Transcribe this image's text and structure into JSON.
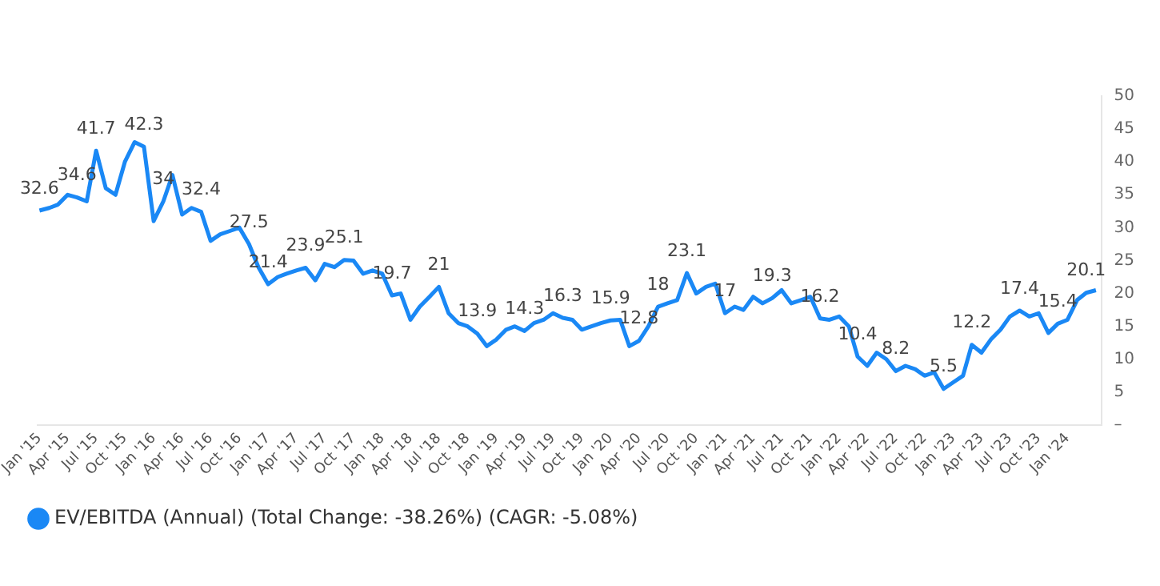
{
  "chart_data": {
    "type": "line",
    "legend": "bottom",
    "grid": false,
    "marker": "none",
    "line_style": "solid",
    "x": [
      "2015-01",
      "2015-02",
      "2015-03",
      "2015-04",
      "2015-05",
      "2015-06",
      "2015-07",
      "2015-08",
      "2015-09",
      "2015-10",
      "2015-11",
      "2015-12",
      "2016-01",
      "2016-02",
      "2016-03",
      "2016-04",
      "2016-05",
      "2016-06",
      "2016-07",
      "2016-08",
      "2016-09",
      "2016-10",
      "2016-11",
      "2016-12",
      "2017-01",
      "2017-02",
      "2017-03",
      "2017-04",
      "2017-05",
      "2017-06",
      "2017-07",
      "2017-08",
      "2017-09",
      "2017-10",
      "2017-11",
      "2017-12",
      "2018-01",
      "2018-02",
      "2018-03",
      "2018-04",
      "2018-05",
      "2018-06",
      "2018-07",
      "2018-08",
      "2018-09",
      "2018-10",
      "2018-11",
      "2018-12",
      "2019-01",
      "2019-02",
      "2019-03",
      "2019-04",
      "2019-05",
      "2019-06",
      "2019-07",
      "2019-08",
      "2019-09",
      "2019-10",
      "2019-11",
      "2019-12",
      "2020-01",
      "2020-02",
      "2020-03",
      "2020-04",
      "2020-05",
      "2020-06",
      "2020-07",
      "2020-08",
      "2020-09",
      "2020-10",
      "2020-11",
      "2020-12",
      "2021-01",
      "2021-02",
      "2021-03",
      "2021-04",
      "2021-05",
      "2021-06",
      "2021-07",
      "2021-08",
      "2021-09",
      "2021-10",
      "2021-11",
      "2021-12",
      "2022-01",
      "2022-02",
      "2022-03",
      "2022-04",
      "2022-05",
      "2022-06",
      "2022-07",
      "2022-08",
      "2022-09",
      "2022-10",
      "2022-11",
      "2022-12",
      "2023-01",
      "2023-02",
      "2023-03",
      "2023-04",
      "2023-05",
      "2023-06",
      "2023-07",
      "2023-08",
      "2023-09",
      "2023-10",
      "2023-11",
      "2023-12",
      "2024-01",
      "2024-02",
      "2024-03",
      "2024-04"
    ],
    "series": [
      {
        "name": "EV/EBITDA (Annual) (Total Change: -38.26%) (CAGR: -5.08%)",
        "color": "#1a88f5",
        "values": [
          32.6,
          33,
          33.5,
          35,
          34.6,
          34,
          41.7,
          36,
          35,
          40,
          43,
          42.3,
          31,
          34,
          38,
          32,
          33,
          32.4,
          28,
          29,
          29.5,
          30,
          27.5,
          24,
          21.4,
          22.5,
          23,
          23.5,
          23.9,
          22,
          24.5,
          24,
          25.1,
          25,
          23,
          23.5,
          23,
          19.7,
          20,
          16,
          18,
          19.5,
          21,
          17,
          15.5,
          15,
          13.9,
          12,
          13,
          14.5,
          15,
          14.3,
          15.5,
          16,
          17,
          16.3,
          16,
          14.5,
          15,
          15.5,
          15.9,
          16,
          12,
          12.8,
          15,
          18,
          18.5,
          19,
          23.1,
          20,
          21,
          21.5,
          17,
          18,
          17.5,
          19.5,
          18.5,
          19.3,
          20.5,
          18.5,
          19,
          19.5,
          16.2,
          16,
          16.5,
          15,
          10.4,
          9,
          11,
          10,
          8.2,
          9,
          8.5,
          7.5,
          8,
          5.5,
          6.5,
          7.5,
          12.2,
          11,
          13,
          14.5,
          16.5,
          17.4,
          16.5,
          17,
          14,
          15.4,
          16,
          19,
          20.1,
          20.5
        ],
        "value_labels": [
          "32.6",
          null,
          null,
          null,
          "34.6",
          null,
          "41.7",
          null,
          null,
          null,
          null,
          "42.3",
          null,
          "34",
          null,
          null,
          null,
          "32.4",
          null,
          null,
          null,
          null,
          "27.5",
          null,
          "21.4",
          null,
          null,
          null,
          "23.9",
          null,
          null,
          null,
          "25.1",
          null,
          null,
          null,
          null,
          "19.7",
          null,
          null,
          null,
          null,
          "21",
          null,
          null,
          null,
          "13.9",
          null,
          null,
          null,
          null,
          "14.3",
          null,
          null,
          null,
          "16.3",
          null,
          null,
          null,
          null,
          "15.9",
          null,
          null,
          "12.8",
          null,
          "18",
          null,
          null,
          "23.1",
          null,
          null,
          null,
          "17",
          null,
          null,
          null,
          null,
          "19.3",
          null,
          null,
          null,
          null,
          "16.2",
          null,
          null,
          null,
          "10.4",
          null,
          null,
          null,
          "8.2",
          null,
          null,
          null,
          null,
          "5.5",
          null,
          null,
          "12.2",
          null,
          null,
          null,
          null,
          "17.4",
          null,
          null,
          null,
          "15.4",
          null,
          null,
          "20.1",
          null
        ]
      }
    ],
    "xlim": [
      "2014-12-25",
      "2024-04-18"
    ],
    "xticks": [
      {
        "value": "2015-01",
        "label": "Jan '15"
      },
      {
        "value": "2015-04",
        "label": "Apr '15"
      },
      {
        "value": "2015-07",
        "label": "Jul '15"
      },
      {
        "value": "2015-10",
        "label": "Oct '15"
      },
      {
        "value": "2016-01",
        "label": "Jan '16"
      },
      {
        "value": "2016-04",
        "label": "Apr '16"
      },
      {
        "value": "2016-07",
        "label": "Jul '16"
      },
      {
        "value": "2016-10",
        "label": "Oct '16"
      },
      {
        "value": "2017-01",
        "label": "Jan '17"
      },
      {
        "value": "2017-04",
        "label": "Apr '17"
      },
      {
        "value": "2017-07",
        "label": "Jul '17"
      },
      {
        "value": "2017-10",
        "label": "Oct '17"
      },
      {
        "value": "2018-01",
        "label": "Jan '18"
      },
      {
        "value": "2018-04",
        "label": "Apr '18"
      },
      {
        "value": "2018-07",
        "label": "Jul '18"
      },
      {
        "value": "2018-10",
        "label": "Oct '18"
      },
      {
        "value": "2019-01",
        "label": "Jan '19"
      },
      {
        "value": "2019-04",
        "label": "Apr '19"
      },
      {
        "value": "2019-07",
        "label": "Jul '19"
      },
      {
        "value": "2019-10",
        "label": "Oct '19"
      },
      {
        "value": "2020-01",
        "label": "Jan '20"
      },
      {
        "value": "2020-04",
        "label": "Apr '20"
      },
      {
        "value": "2020-07",
        "label": "Jul '20"
      },
      {
        "value": "2020-10",
        "label": "Oct '20"
      },
      {
        "value": "2021-01",
        "label": "Jan '21"
      },
      {
        "value": "2021-04",
        "label": "Apr '21"
      },
      {
        "value": "2021-07",
        "label": "Jul '21"
      },
      {
        "value": "2021-10",
        "label": "Oct '21"
      },
      {
        "value": "2022-01",
        "label": "Jan '22"
      },
      {
        "value": "2022-04",
        "label": "Apr '22"
      },
      {
        "value": "2022-07",
        "label": "Jul '22"
      },
      {
        "value": "2022-10",
        "label": "Oct '22"
      },
      {
        "value": "2023-01",
        "label": "Jan '23"
      },
      {
        "value": "2023-04",
        "label": "Apr '23"
      },
      {
        "value": "2023-07",
        "label": "Jul '23"
      },
      {
        "value": "2023-10",
        "label": "Oct '23"
      },
      {
        "value": "2024-01",
        "label": "Jan '24"
      }
    ],
    "ylim": [
      0,
      50
    ],
    "yticks": [
      {
        "value": 0,
        "label": "–"
      },
      5,
      10,
      15,
      20,
      25,
      30,
      35,
      40,
      45,
      50
    ]
  }
}
